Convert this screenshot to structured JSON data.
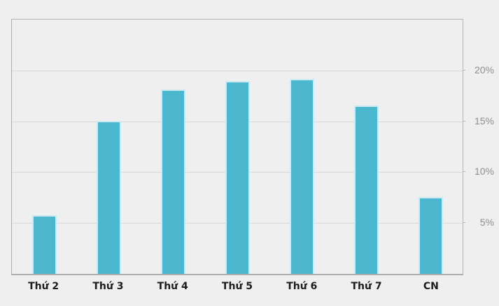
{
  "chart_data": {
    "type": "bar",
    "categories": [
      "Thứ 2",
      "Thứ 3",
      "Thứ 4",
      "Thứ 5",
      "Thứ 6",
      "Thứ 7",
      "CN"
    ],
    "values": [
      5.6,
      14.9,
      18.0,
      18.8,
      19.0,
      16.4,
      7.4
    ],
    "title": "",
    "xlabel": "",
    "ylabel": "",
    "ylim": [
      0,
      25
    ],
    "yticks": [
      5,
      10,
      15,
      20
    ],
    "ytick_labels": [
      "5%",
      "10%",
      "15%",
      "20%"
    ],
    "ytick_side": "right",
    "grid": true,
    "legend": null,
    "colors": {
      "bar_fill": "#4cb8d0",
      "bar_border": "#cfe9f2",
      "gridline": "#d9d9d9",
      "frame": "#b3b3b3",
      "background": "#efefef",
      "ytick_text": "#8e8e8e",
      "xtick_text": "#1c1c1c"
    }
  }
}
